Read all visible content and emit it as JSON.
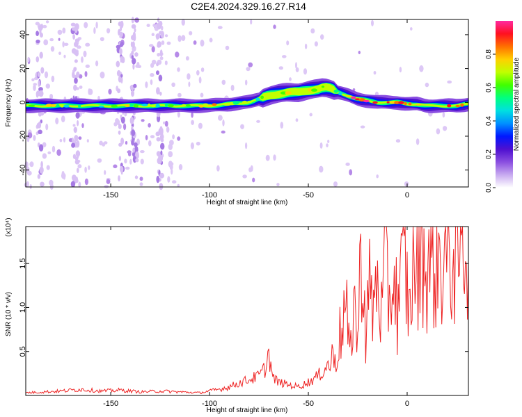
{
  "title": "C2E4.2024.329.16.27.R14",
  "colors": {
    "snr_line": "#ee2222",
    "colormap": [
      "#ffffff",
      "#c8aaf0",
      "#8a4ee0",
      "#4e10d0",
      "#0018ff",
      "#0090ff",
      "#00e0e0",
      "#00ff80",
      "#40ff00",
      "#c0ff00",
      "#ffd000",
      "#ff7000",
      "#ff1020",
      "#ff2aa0"
    ]
  },
  "chart_data": [
    {
      "type": "heatmap",
      "xlabel": "Height of straight line (km)",
      "ylabel": "Frequency (Hz)",
      "xlim": [
        -193,
        31
      ],
      "ylim": [
        -50,
        49
      ],
      "x_ticks": [
        -150,
        -100,
        -50,
        0
      ],
      "x_tick_labels": [
        "-150",
        "-100",
        "-50",
        "0"
      ],
      "y_ticks": [
        -40,
        -20,
        0,
        20,
        40
      ],
      "y_tick_labels": [
        "-40",
        "-20",
        "0",
        "20",
        "40"
      ],
      "ridge": {
        "description": "centre frequency of the dominant spectral band",
        "x": [
          -193,
          -180,
          -160,
          -140,
          -120,
          -100,
          -90,
          -80,
          -75,
          -70,
          -65,
          -60,
          -55,
          -50,
          -45,
          -42,
          -38,
          -35,
          -30,
          -25,
          -20,
          -15,
          -10,
          -5,
          0,
          5,
          10,
          15,
          20,
          25,
          31
        ],
        "y": [
          -2,
          -2,
          -2,
          -2,
          -2,
          -2,
          -1,
          0,
          2,
          4,
          5,
          6,
          6,
          7,
          8,
          9,
          8,
          6,
          4,
          2,
          1,
          0,
          0,
          0,
          -1,
          -1,
          -2,
          -2,
          -2,
          -2,
          -1
        ]
      },
      "colorbar": {
        "label": "Normalized spectral amplitude",
        "range": [
          0,
          1
        ],
        "ticks": [
          0.0,
          0.2,
          0.4,
          0.6,
          0.8
        ],
        "tick_labels": [
          "0.0",
          "0.2",
          "0.4",
          "0.6",
          "0.8"
        ]
      }
    },
    {
      "type": "line",
      "xlabel": "Height of straight line (km)",
      "ylabel": "SNR (10 * v/v)",
      "scale_label": "(x10⁴)",
      "xlim": [
        -193,
        31
      ],
      "ylim": [
        0,
        1.92
      ],
      "x_ticks": [
        -150,
        -100,
        -50,
        0
      ],
      "x_tick_labels": [
        "-150",
        "-100",
        "-50",
        "0"
      ],
      "y_ticks": [
        0.5,
        1.0,
        1.5
      ],
      "y_tick_labels": [
        "0.5",
        "1.0",
        "1.5"
      ],
      "series": [
        {
          "x": [
            -193,
            -185,
            -175,
            -165,
            -155,
            -145,
            -135,
            -125,
            -115,
            -105,
            -100,
            -95,
            -90,
            -85,
            -80,
            -75,
            -72,
            -70,
            -68,
            -65,
            -60,
            -55,
            -50,
            -45,
            -40,
            -37,
            -35,
            -33,
            -31,
            -29,
            -27,
            -25,
            -23,
            -21,
            -19,
            -17,
            -15,
            -13,
            -11,
            -9,
            -7,
            -5,
            -3,
            -1,
            1,
            3,
            5,
            7,
            9,
            11,
            13,
            15,
            17,
            19,
            21,
            23,
            25,
            27,
            29,
            31
          ],
          "y": [
            0.03,
            0.04,
            0.05,
            0.07,
            0.05,
            0.06,
            0.04,
            0.05,
            0.04,
            0.03,
            0.05,
            0.07,
            0.1,
            0.14,
            0.18,
            0.22,
            0.3,
            0.48,
            0.2,
            0.15,
            0.12,
            0.1,
            0.15,
            0.22,
            0.35,
            0.45,
            0.55,
            0.8,
            1.0,
            0.4,
            1.15,
            0.6,
            1.8,
            0.7,
            1.2,
            0.95,
            1.4,
            0.9,
            1.5,
            1.1,
            1.4,
            1.0,
            1.3,
            1.5,
            0.9,
            1.6,
            1.3,
            1.92,
            1.45,
            1.55,
            1.4,
            1.6,
            1.5,
            1.58,
            1.55,
            1.6,
            1.65,
            1.7,
            1.75,
            1.72
          ]
        }
      ]
    }
  ]
}
